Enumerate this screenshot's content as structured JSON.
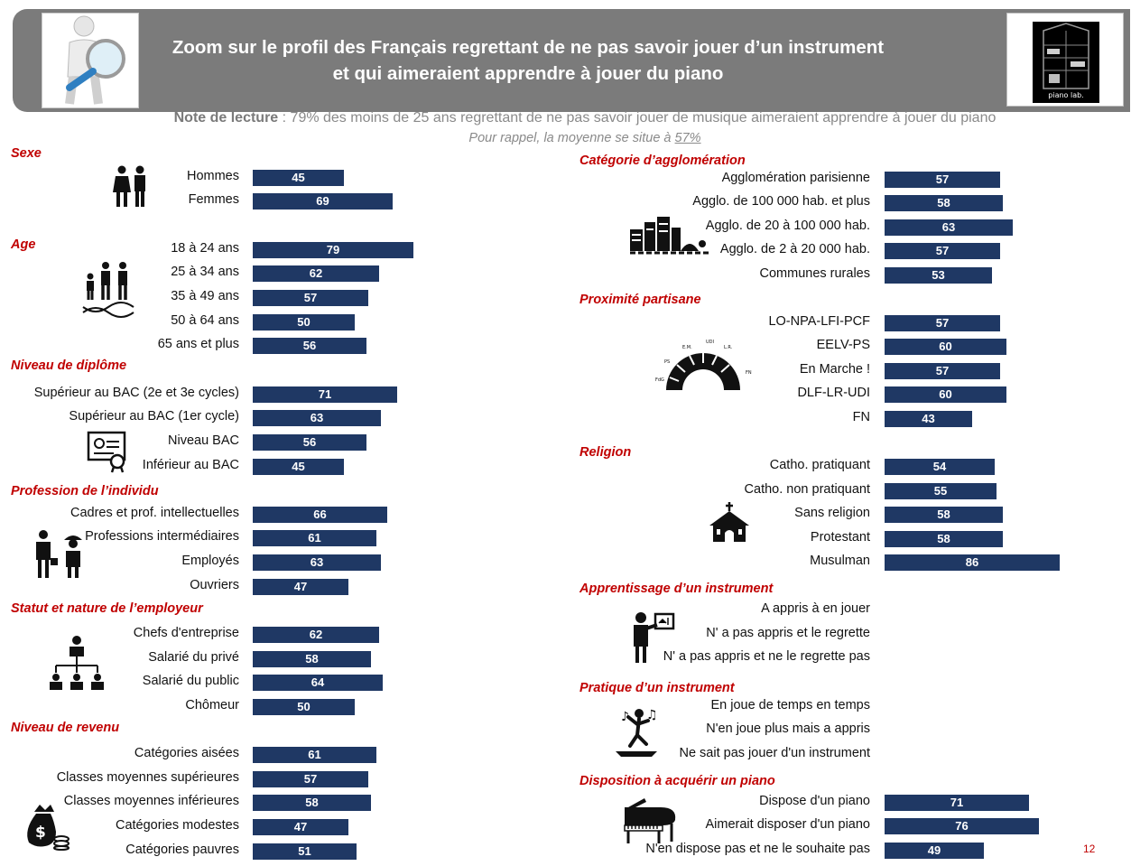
{
  "header": {
    "title_line1": "Zoom sur le profil des Français regrettant de ne pas savoir jouer d’un instrument",
    "title_line2": "et qui aimeraient apprendre à jouer du piano",
    "logo_text": "piano lab."
  },
  "note": {
    "lead": "Note de lecture",
    "text": " : 79% des moins de 25 ans regrettant de ne pas savoir jouer de musique aimeraient apprendre à jouer du piano",
    "reminder_prefix": "Pour rappel, la moyenne se situe à ",
    "reminder_value": "57%"
  },
  "colors": {
    "bar": "#1f3864",
    "section": "#c00000",
    "header": "#7b7b7b"
  },
  "icons": [
    "magnifier-figure-icon",
    "piano-lab-logo",
    "couple-icon",
    "family-dna-icon",
    "diploma-icon",
    "workers-icon",
    "org-chart-icon",
    "money-bag-icon",
    "city-icon",
    "hemicycle-icon",
    "church-icon",
    "teacher-board-icon",
    "dancer-icon",
    "grand-piano-icon"
  ],
  "page_number": "12",
  "chart_data": {
    "type": "bar",
    "orientation": "horizontal",
    "xlim": [
      0,
      100
    ],
    "grid": false,
    "left": [
      {
        "title": "Sexe",
        "icon": "couple-icon",
        "items": [
          {
            "label": "Hommes",
            "value": 45
          },
          {
            "label": "Femmes",
            "value": 69
          }
        ]
      },
      {
        "title": "Age",
        "icon": "family-dna-icon",
        "items": [
          {
            "label": "18 à 24 ans",
            "value": 79
          },
          {
            "label": "25 à 34 ans",
            "value": 62
          },
          {
            "label": "35 à 49 ans",
            "value": 57
          },
          {
            "label": "50 à 64 ans",
            "value": 50
          },
          {
            "label": "65 ans et plus",
            "value": 56
          }
        ]
      },
      {
        "title": "Niveau de diplôme",
        "icon": "diploma-icon",
        "items": [
          {
            "label": "Supérieur  au BAC (2e et 3e cycles)",
            "value": 71
          },
          {
            "label": "Supérieur  au BAC (1er cycle)",
            "value": 63
          },
          {
            "label": "Niveau BAC",
            "value": 56
          },
          {
            "label": "Inférieur au BAC",
            "value": 45
          }
        ]
      },
      {
        "title": "Profession de l’individu",
        "icon": "workers-icon",
        "items": [
          {
            "label": "Cadres et prof. intellectuelles",
            "value": 66
          },
          {
            "label": "Professions intermédiaires",
            "value": 61
          },
          {
            "label": "Employés",
            "value": 63
          },
          {
            "label": "Ouvriers",
            "value": 47
          }
        ]
      },
      {
        "title": "Statut et nature de l’employeur",
        "icon": "org-chart-icon",
        "items": [
          {
            "label": "Chefs d'entreprise",
            "value": 62
          },
          {
            "label": "Salarié du privé",
            "value": 58
          },
          {
            "label": "Salarié du public",
            "value": 64
          },
          {
            "label": "Chômeur",
            "value": 50
          }
        ]
      },
      {
        "title": "Niveau de revenu",
        "icon": "money-bag-icon",
        "items": [
          {
            "label": "Catégories aisées",
            "value": 61
          },
          {
            "label": "Classes moyennes supérieures",
            "value": 57
          },
          {
            "label": "Classes moyennes inférieures",
            "value": 58
          },
          {
            "label": "Catégories modestes",
            "value": 47
          },
          {
            "label": "Catégories pauvres",
            "value": 51
          }
        ]
      }
    ],
    "right": [
      {
        "title": "Catégorie d’agglomération",
        "icon": "city-icon",
        "items": [
          {
            "label": "Agglomération parisienne",
            "value": 57
          },
          {
            "label": "Agglo. de 100 000 hab. et plus",
            "value": 58
          },
          {
            "label": "Agglo. de 20 à 100 000 hab.",
            "value": 63
          },
          {
            "label": "Agglo. de 2 à 20 000 hab.",
            "value": 57
          },
          {
            "label": "Communes rurales",
            "value": 53
          }
        ]
      },
      {
        "title": "Proximité partisane",
        "icon": "hemicycle-icon",
        "items": [
          {
            "label": "LO-NPA-LFI-PCF",
            "value": 57
          },
          {
            "label": "EELV-PS",
            "value": 60
          },
          {
            "label": "En Marche !",
            "value": 57
          },
          {
            "label": "DLF-LR-UDI",
            "value": 60
          },
          {
            "label": "FN",
            "value": 43
          }
        ]
      },
      {
        "title": "Religion",
        "icon": "church-icon",
        "items": [
          {
            "label": "Catho. pratiquant",
            "value": 54
          },
          {
            "label": "Catho. non pratiquant",
            "value": 55
          },
          {
            "label": "Sans religion",
            "value": 58
          },
          {
            "label": "Protestant",
            "value": 58
          },
          {
            "label": "Musulman",
            "value": 86
          }
        ]
      },
      {
        "title": "Apprentissage d’un instrument",
        "icon": "teacher-board-icon",
        "items": [
          {
            "label": "A appris à en jouer",
            "value": null
          },
          {
            "label": "N' a pas appris et le regrette",
            "value": null
          },
          {
            "label": "N' a pas appris et ne le regrette pas",
            "value": null
          }
        ]
      },
      {
        "title": "Pratique d’un instrument",
        "icon": "dancer-icon",
        "items": [
          {
            "label": "En joue de temps en temps",
            "value": null
          },
          {
            "label": "N'en joue plus  mais a appris",
            "value": null
          },
          {
            "label": "Ne sait pas jouer d'un instrument",
            "value": null
          }
        ]
      },
      {
        "title": "Disposition à acquérir un piano",
        "icon": "grand-piano-icon",
        "items": [
          {
            "label": "Dispose d'un piano",
            "value": 71
          },
          {
            "label": "Aimerait disposer d'un piano",
            "value": 76
          },
          {
            "label": "N'en  dispose pas et ne le souhaite pas",
            "value": 49
          }
        ]
      }
    ]
  }
}
